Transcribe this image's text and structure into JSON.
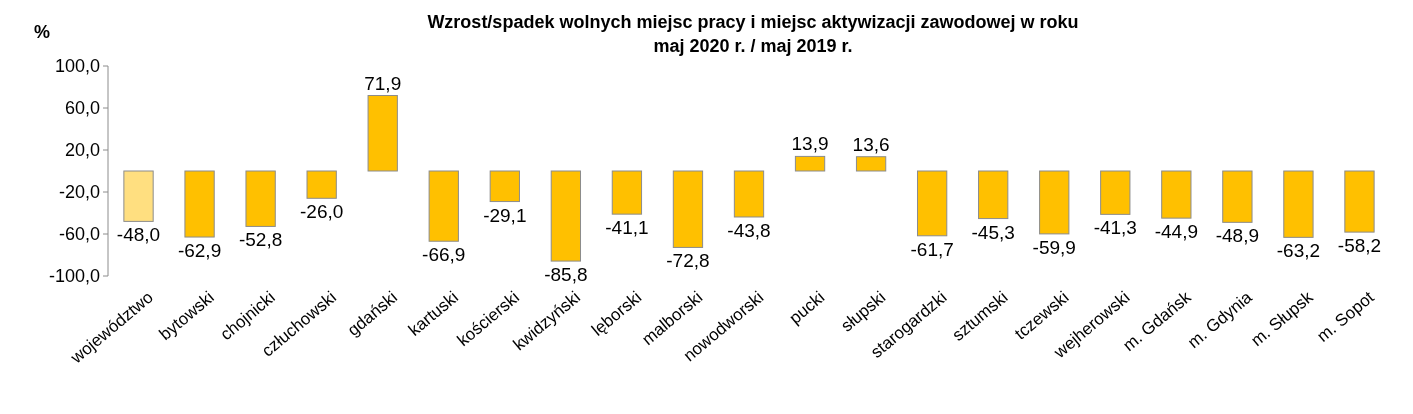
{
  "chart_data": {
    "type": "bar",
    "title": "Wzrost/spadek wolnych miejsc pracy i miejsc aktywizacji zawodowej w roku",
    "subtitle": "maj 2020 r. / maj 2019 r.",
    "ylabel": "%",
    "categories": [
      "województwo",
      "bytowski",
      "chojnicki",
      "człuchowski",
      "gdański",
      "kartuski",
      "kościerski",
      "kwidzyński",
      "lęborski",
      "malborski",
      "nowodworski",
      "pucki",
      "słupski",
      "starogardzki",
      "sztumski",
      "tczewski",
      "wejherowski",
      "m. Gdańsk",
      "m. Gdynia",
      "m. Słupsk",
      "m. Sopot"
    ],
    "values": [
      -48.0,
      -62.9,
      -52.8,
      -26.0,
      71.9,
      -66.9,
      -29.1,
      -85.8,
      -41.1,
      -72.8,
      -43.8,
      13.9,
      13.6,
      -61.7,
      -45.3,
      -59.9,
      -41.3,
      -44.9,
      -48.9,
      -63.2,
      -58.2
    ],
    "value_labels": [
      "-48,0",
      "-62,9",
      "-52,8",
      "-26,0",
      "71,9",
      "-66,9",
      "-29,1",
      "-85,8",
      "-41,1",
      "-72,8",
      "-43,8",
      "13,9",
      "13,6",
      "-61,7",
      "-45,3",
      "-59,9",
      "-41,3",
      "-44,9",
      "-48,9",
      "-63,2",
      "-58,2"
    ],
    "colors": [
      "#ffdf80",
      "#ffc000",
      "#ffc000",
      "#ffc000",
      "#ffc000",
      "#ffc000",
      "#ffc000",
      "#ffc000",
      "#ffc000",
      "#ffc000",
      "#ffc000",
      "#ffc000",
      "#ffc000",
      "#ffc000",
      "#ffc000",
      "#ffc000",
      "#ffc000",
      "#ffc000",
      "#ffc000",
      "#ffc000",
      "#ffc000"
    ],
    "ylim": [
      -100,
      100
    ],
    "yticks": [
      {
        "value": 100,
        "label": "100,0"
      },
      {
        "value": 60,
        "label": "60,0"
      },
      {
        "value": 20,
        "label": "20,0"
      },
      {
        "value": -20,
        "label": "-20,0"
      },
      {
        "value": -60,
        "label": "-60,0"
      },
      {
        "value": -100,
        "label": "-100,0"
      }
    ],
    "grid": false
  }
}
